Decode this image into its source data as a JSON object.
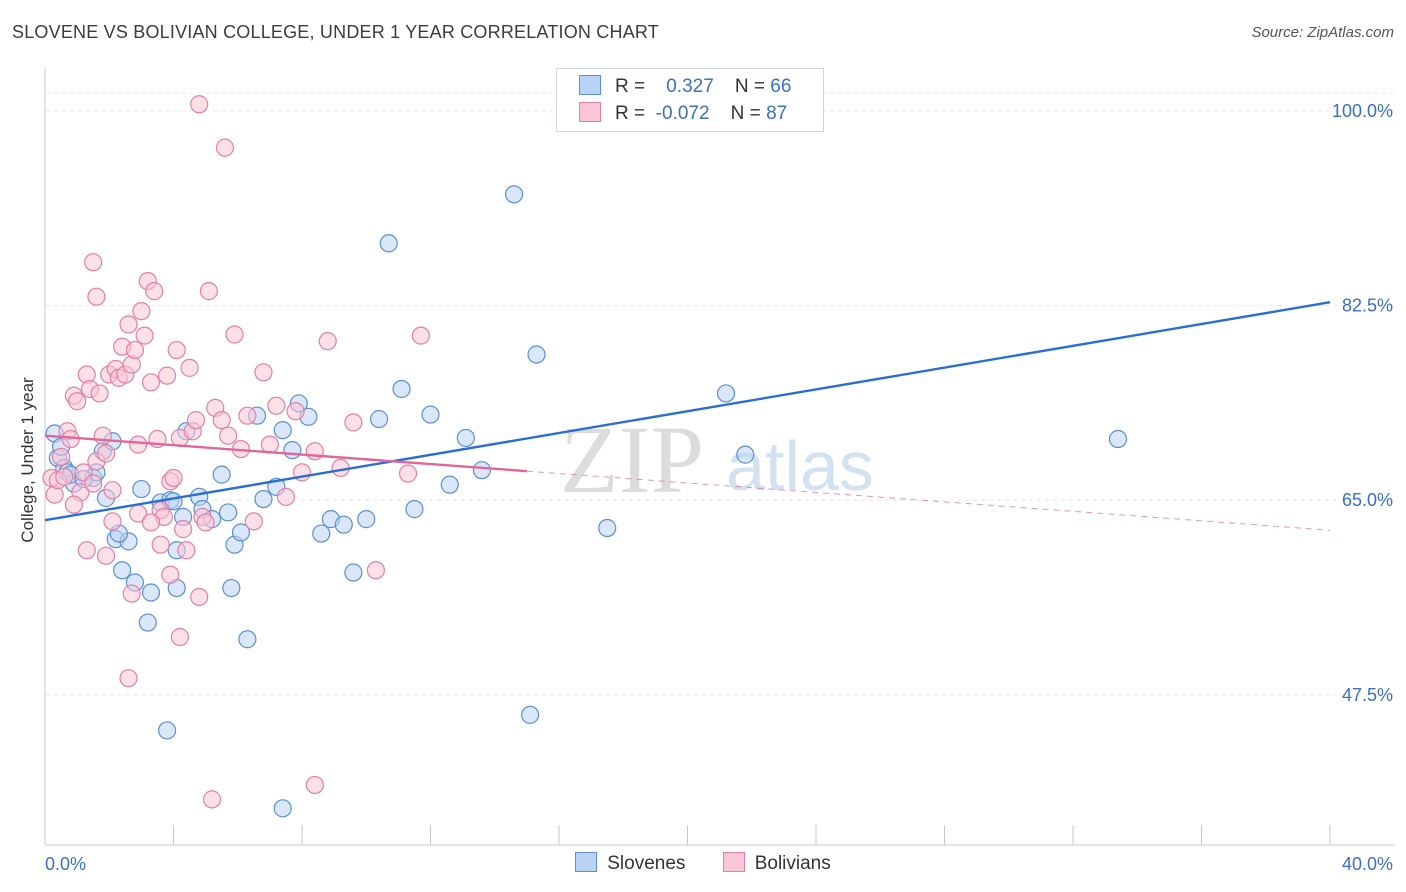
{
  "title": "SLOVENE VS BOLIVIAN COLLEGE, UNDER 1 YEAR CORRELATION CHART",
  "source": "Source: ZipAtlas.com",
  "watermark": {
    "zip": "ZIP",
    "atlas": "atlas"
  },
  "legend": {
    "rows": [
      {
        "r_label": "R =",
        "r_value": "0.327",
        "n_label": "N =",
        "n_value": "66"
      },
      {
        "r_label": "R =",
        "r_value": "-0.072",
        "n_label": "N =",
        "n_value": "87"
      }
    ]
  },
  "colors": {
    "slovenes_fill": "#b9d3f4",
    "slovenes_stroke": "#5b8fd6",
    "slovenes_line": "#2a6fd0",
    "bolivians_fill": "#f9c6d6",
    "bolivians_stroke": "#e57fa3",
    "bolivians_line": "#e0669a",
    "tick_label": "#3a6fc9",
    "grid": "#e3e6eb"
  },
  "chart_data": {
    "type": "scatter",
    "xlabel": "",
    "ylabel": "College, Under 1 year",
    "xlim": [
      0.0,
      40.0
    ],
    "ylim": [
      34.0,
      103.5
    ],
    "x_tick_labels": [
      "0.0%",
      "40.0%"
    ],
    "y_ticks": [
      47.5,
      65.0,
      82.5,
      100.0
    ],
    "y_tick_labels": [
      "47.5%",
      "65.0%",
      "82.5%",
      "100.0%"
    ],
    "grid": true,
    "legend_position": "top-center",
    "series": [
      {
        "name": "Slovenes",
        "r": 0.327,
        "n": 66,
        "trend": {
          "x": [
            0.0,
            40.0
          ],
          "y": [
            63.2,
            82.8
          ],
          "solid_until": 40.0
        },
        "points": [
          [
            0.3,
            71.0
          ],
          [
            0.4,
            68.8
          ],
          [
            0.5,
            69.8
          ],
          [
            0.6,
            67.9
          ],
          [
            0.7,
            67.5
          ],
          [
            0.9,
            66.5
          ],
          [
            0.8,
            67.3
          ],
          [
            1.5,
            67.0
          ],
          [
            1.6,
            67.5
          ],
          [
            1.2,
            66.9
          ],
          [
            1.8,
            69.4
          ],
          [
            1.9,
            65.2
          ],
          [
            2.1,
            70.3
          ],
          [
            2.2,
            61.5
          ],
          [
            2.4,
            58.7
          ],
          [
            2.6,
            61.3
          ],
          [
            2.8,
            57.6
          ],
          [
            3.0,
            66.0
          ],
          [
            3.2,
            54.0
          ],
          [
            3.3,
            56.7
          ],
          [
            3.6,
            64.8
          ],
          [
            3.9,
            65.0
          ],
          [
            4.0,
            64.9
          ],
          [
            4.1,
            60.5
          ],
          [
            4.3,
            63.5
          ],
          [
            4.4,
            71.2
          ],
          [
            4.8,
            65.3
          ],
          [
            4.9,
            64.2
          ],
          [
            5.2,
            63.3
          ],
          [
            5.5,
            67.3
          ],
          [
            5.7,
            63.9
          ],
          [
            5.9,
            61.0
          ],
          [
            6.1,
            62.1
          ],
          [
            6.3,
            52.5
          ],
          [
            6.6,
            72.6
          ],
          [
            6.8,
            65.1
          ],
          [
            7.2,
            66.2
          ],
          [
            7.4,
            71.3
          ],
          [
            7.7,
            69.5
          ],
          [
            7.9,
            73.7
          ],
          [
            8.2,
            72.5
          ],
          [
            8.6,
            62.0
          ],
          [
            8.9,
            63.3
          ],
          [
            9.3,
            62.8
          ],
          [
            9.6,
            58.5
          ],
          [
            10.0,
            63.3
          ],
          [
            10.4,
            72.3
          ],
          [
            10.7,
            88.1
          ],
          [
            11.1,
            75.0
          ],
          [
            11.5,
            64.2
          ],
          [
            12.0,
            72.7
          ],
          [
            12.6,
            66.4
          ],
          [
            13.1,
            70.6
          ],
          [
            13.6,
            67.7
          ],
          [
            14.6,
            92.5
          ],
          [
            15.1,
            45.7
          ],
          [
            15.3,
            78.1
          ],
          [
            17.5,
            62.5
          ],
          [
            21.2,
            74.6
          ],
          [
            21.8,
            69.1
          ],
          [
            33.4,
            70.5
          ],
          [
            3.8,
            44.3
          ],
          [
            7.4,
            37.3
          ],
          [
            4.1,
            57.1
          ],
          [
            5.8,
            57.1
          ],
          [
            2.3,
            62.0
          ]
        ]
      },
      {
        "name": "Bolivians",
        "r": -0.072,
        "n": 87,
        "trend": {
          "x": [
            0.0,
            40.0
          ],
          "y": [
            70.8,
            62.3
          ],
          "solid_until": 15.0
        },
        "points": [
          [
            0.2,
            67.0
          ],
          [
            0.3,
            65.5
          ],
          [
            0.4,
            66.8
          ],
          [
            0.5,
            68.9
          ],
          [
            0.6,
            67.1
          ],
          [
            0.7,
            71.2
          ],
          [
            0.8,
            70.5
          ],
          [
            0.9,
            74.4
          ],
          [
            1.0,
            73.9
          ],
          [
            1.1,
            65.7
          ],
          [
            1.2,
            67.5
          ],
          [
            1.3,
            76.3
          ],
          [
            1.4,
            75.0
          ],
          [
            1.5,
            66.5
          ],
          [
            1.6,
            68.5
          ],
          [
            1.7,
            74.6
          ],
          [
            1.8,
            70.8
          ],
          [
            1.9,
            69.2
          ],
          [
            2.0,
            76.3
          ],
          [
            2.1,
            65.9
          ],
          [
            2.2,
            76.8
          ],
          [
            2.3,
            76.0
          ],
          [
            2.4,
            78.8
          ],
          [
            2.5,
            76.3
          ],
          [
            2.6,
            80.8
          ],
          [
            2.7,
            77.2
          ],
          [
            2.8,
            78.5
          ],
          [
            2.9,
            70.0
          ],
          [
            3.0,
            82.0
          ],
          [
            3.1,
            79.8
          ],
          [
            3.2,
            84.7
          ],
          [
            3.3,
            75.6
          ],
          [
            3.4,
            83.8
          ],
          [
            3.5,
            70.5
          ],
          [
            3.6,
            64.1
          ],
          [
            3.7,
            63.5
          ],
          [
            3.8,
            76.2
          ],
          [
            3.9,
            66.7
          ],
          [
            4.0,
            67.0
          ],
          [
            4.1,
            78.5
          ],
          [
            4.2,
            70.6
          ],
          [
            4.3,
            62.4
          ],
          [
            4.4,
            60.5
          ],
          [
            4.5,
            76.9
          ],
          [
            4.6,
            71.2
          ],
          [
            4.7,
            72.2
          ],
          [
            4.8,
            56.3
          ],
          [
            4.9,
            63.5
          ],
          [
            5.0,
            63.0
          ],
          [
            5.1,
            83.8
          ],
          [
            5.3,
            73.3
          ],
          [
            5.5,
            72.2
          ],
          [
            5.7,
            70.8
          ],
          [
            5.9,
            79.9
          ],
          [
            6.1,
            69.6
          ],
          [
            6.3,
            72.6
          ],
          [
            6.5,
            63.1
          ],
          [
            6.8,
            76.5
          ],
          [
            7.0,
            70.0
          ],
          [
            7.2,
            73.5
          ],
          [
            7.5,
            65.3
          ],
          [
            7.8,
            73.0
          ],
          [
            8.0,
            67.5
          ],
          [
            8.4,
            69.4
          ],
          [
            8.8,
            79.3
          ],
          [
            9.2,
            67.9
          ],
          [
            9.6,
            72.0
          ],
          [
            10.3,
            58.7
          ],
          [
            11.3,
            67.4
          ],
          [
            11.7,
            79.8
          ],
          [
            4.8,
            100.6
          ],
          [
            5.6,
            96.7
          ],
          [
            1.5,
            86.4
          ],
          [
            1.6,
            83.3
          ],
          [
            0.9,
            64.6
          ],
          [
            1.3,
            60.5
          ],
          [
            1.9,
            60.0
          ],
          [
            2.1,
            63.1
          ],
          [
            2.9,
            63.8
          ],
          [
            3.3,
            63.0
          ],
          [
            3.6,
            61.0
          ],
          [
            4.2,
            52.7
          ],
          [
            3.9,
            58.3
          ],
          [
            2.7,
            56.6
          ],
          [
            2.6,
            49.0
          ],
          [
            5.2,
            38.1
          ],
          [
            8.4,
            39.4
          ]
        ]
      }
    ]
  },
  "bottom_legend": [
    "Slovenes",
    "Bolivians"
  ]
}
